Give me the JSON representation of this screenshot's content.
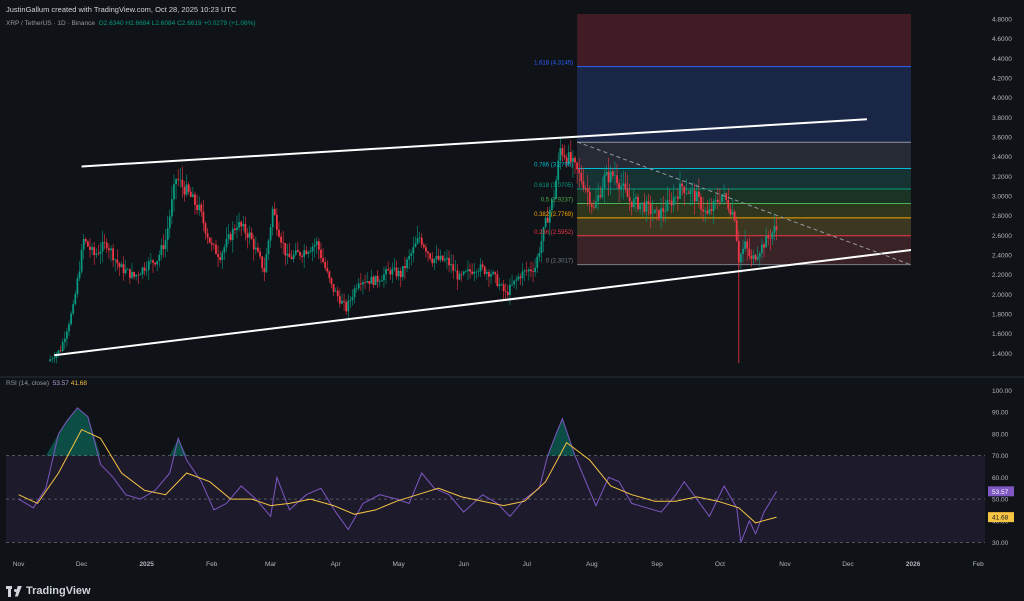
{
  "header": {
    "created_by": "JustinGallum created with TradingView.com, Oct 28, 2025 10:23 UTC",
    "symbol": "XRP / TetherUS · 1D · Binance",
    "ohlc": {
      "open": "O2.6340",
      "high": "H2.6684",
      "low": "L2.6084",
      "close": "C2.6619",
      "change": "+0.0279 (+1.06%)"
    }
  },
  "rsi_panel": {
    "label": "RSI (14, close)",
    "rsi_value": "53.57",
    "ma_value": "41.68"
  },
  "footer": {
    "brand": "TradingView"
  },
  "colors": {
    "background": "#0f1216",
    "up": "#089981",
    "down": "#f23645",
    "channel": "#ffffff",
    "rsi": "#7e57c2",
    "rsi_ma": "#f6c343"
  },
  "chart_data": [
    {
      "type": "candlestick",
      "title": "XRP / TetherUS · 1D · Binance",
      "x": [
        "Nov",
        "Dec",
        "2025",
        "Feb",
        "Mar",
        "Apr",
        "May",
        "Jun",
        "Jul",
        "Aug",
        "Sep",
        "Oct",
        "Nov",
        "Dec",
        "2026",
        "Feb"
      ],
      "y_ticks": [
        "4.8000",
        "4.6000",
        "4.4000",
        "4.2000",
        "4.0000",
        "3.8000",
        "3.6000",
        "3.4000",
        "3.2000",
        "3.0000",
        "2.8000",
        "2.6000",
        "2.4000",
        "2.2000",
        "2.0000",
        "1.8000",
        "1.6000",
        "1.4000"
      ],
      "ylim": [
        1.2,
        4.85
      ],
      "price_path": [
        [
          "2024-11-16",
          1.32
        ],
        [
          "2024-11-22",
          1.44
        ],
        [
          "2024-11-28",
          1.86
        ],
        [
          "2024-12-03",
          2.55
        ],
        [
          "2024-12-08",
          2.4
        ],
        [
          "2024-12-14",
          2.52
        ],
        [
          "2024-12-20",
          2.28
        ],
        [
          "2024-12-27",
          2.18
        ],
        [
          "2025-01-02",
          2.3
        ],
        [
          "2025-01-07",
          2.36
        ],
        [
          "2025-01-11",
          2.55
        ],
        [
          "2025-01-16",
          3.18
        ],
        [
          "2025-01-21",
          3.05
        ],
        [
          "2025-01-27",
          2.86
        ],
        [
          "2025-02-02",
          2.48
        ],
        [
          "2025-02-06",
          2.4
        ],
        [
          "2025-02-14",
          2.72
        ],
        [
          "2025-02-20",
          2.6
        ],
        [
          "2025-02-27",
          2.24
        ],
        [
          "2025-03-03",
          2.86
        ],
        [
          "2025-03-10",
          2.36
        ],
        [
          "2025-03-17",
          2.43
        ],
        [
          "2025-03-24",
          2.52
        ],
        [
          "2025-03-31",
          2.08
        ],
        [
          "2025-04-07",
          1.85
        ],
        [
          "2025-04-13",
          2.15
        ],
        [
          "2025-04-21",
          2.14
        ],
        [
          "2025-04-28",
          2.24
        ],
        [
          "2025-05-03",
          2.2
        ],
        [
          "2025-05-12",
          2.58
        ],
        [
          "2025-05-18",
          2.36
        ],
        [
          "2025-05-25",
          2.34
        ],
        [
          "2025-05-31",
          2.16
        ],
        [
          "2025-06-08",
          2.28
        ],
        [
          "2025-06-15",
          2.22
        ],
        [
          "2025-06-22",
          2.0
        ],
        [
          "2025-06-29",
          2.2
        ],
        [
          "2025-07-06",
          2.28
        ],
        [
          "2025-07-11",
          2.72
        ],
        [
          "2025-07-15",
          3.0
        ],
        [
          "2025-07-18",
          3.48
        ],
        [
          "2025-07-23",
          3.35
        ],
        [
          "2025-07-30",
          3.1
        ],
        [
          "2025-08-03",
          2.86
        ],
        [
          "2025-08-08",
          3.18
        ],
        [
          "2025-08-13",
          3.22
        ],
        [
          "2025-08-20",
          2.95
        ],
        [
          "2025-08-27",
          2.9
        ],
        [
          "2025-09-02",
          2.8
        ],
        [
          "2025-09-08",
          2.92
        ],
        [
          "2025-09-14",
          3.1
        ],
        [
          "2025-09-21",
          2.98
        ],
        [
          "2025-09-26",
          2.8
        ],
        [
          "2025-10-03",
          3.02
        ],
        [
          "2025-10-09",
          2.8
        ],
        [
          "2025-10-11",
          2.36
        ],
        [
          "2025-10-14",
          2.5
        ],
        [
          "2025-10-17",
          2.34
        ],
        [
          "2025-10-21",
          2.46
        ],
        [
          "2025-10-28",
          2.66
        ]
      ],
      "annotations": {
        "channel_upper": [
          [
            "2024-12-01",
            3.3
          ],
          [
            "2025-12-10",
            3.78
          ]
        ],
        "channel_lower": [
          [
            "2024-11-18",
            1.38
          ],
          [
            "2025-12-31",
            2.45
          ]
        ],
        "descending_trendline": [
          [
            "2025-07-25",
            3.55
          ],
          [
            "2025-12-31",
            2.3
          ]
        ],
        "wick_low": [
          "2025-10-10",
          1.3
        ],
        "fib_levels": [
          {
            "ratio": "0",
            "price": 2.3017,
            "label": "0 (2.3017)"
          },
          {
            "ratio": "0.236",
            "price": 2.5952,
            "label": "0.236 (2.5952)"
          },
          {
            "ratio": "0.382",
            "price": 2.7769,
            "label": "0.382 (2.7769)"
          },
          {
            "ratio": "0.5",
            "price": 2.9237,
            "label": "0.5 (2.9237)"
          },
          {
            "ratio": "0.618",
            "price": 3.0705,
            "label": "0.618 (3.0705)"
          },
          {
            "ratio": "0.786",
            "price": 3.2795,
            "label": "0.786 (3.2795)"
          },
          {
            "ratio": "1",
            "price": 3.5456,
            "label": ""
          },
          {
            "ratio": "1.618",
            "price": 4.3145,
            "label": "1.618 (4.3145)"
          }
        ]
      }
    },
    {
      "type": "line",
      "title": "RSI (14, close)",
      "y_ticks": [
        "100.00",
        "90.00",
        "80.00",
        "70.00",
        "60.00",
        "50.00",
        "40.00",
        "30.00"
      ],
      "ylim": [
        27,
        103
      ],
      "reference_lines": [
        70,
        50,
        30
      ],
      "series": [
        {
          "name": "RSI",
          "points": [
            [
              "2024-11-01",
              50
            ],
            [
              "2024-11-08",
              46
            ],
            [
              "2024-11-14",
              55
            ],
            [
              "2024-11-20",
              80
            ],
            [
              "2024-11-24",
              86
            ],
            [
              "2024-11-29",
              92
            ],
            [
              "2024-12-04",
              88
            ],
            [
              "2024-12-10",
              66
            ],
            [
              "2024-12-16",
              60
            ],
            [
              "2024-12-22",
              52
            ],
            [
              "2024-12-29",
              50
            ],
            [
              "2025-01-05",
              54
            ],
            [
              "2025-01-12",
              62
            ],
            [
              "2025-01-16",
              78
            ],
            [
              "2025-01-20",
              68
            ],
            [
              "2025-01-27",
              58
            ],
            [
              "2025-02-02",
              45
            ],
            [
              "2025-02-08",
              48
            ],
            [
              "2025-02-15",
              56
            ],
            [
              "2025-02-22",
              50
            ],
            [
              "2025-03-01",
              42
            ],
            [
              "2025-03-04",
              60
            ],
            [
              "2025-03-10",
              45
            ],
            [
              "2025-03-18",
              52
            ],
            [
              "2025-03-25",
              55
            ],
            [
              "2025-04-01",
              44
            ],
            [
              "2025-04-07",
              36
            ],
            [
              "2025-04-14",
              48
            ],
            [
              "2025-04-22",
              52
            ],
            [
              "2025-04-30",
              50
            ],
            [
              "2025-05-06",
              48
            ],
            [
              "2025-05-12",
              62
            ],
            [
              "2025-05-18",
              55
            ],
            [
              "2025-05-25",
              52
            ],
            [
              "2025-06-01",
              44
            ],
            [
              "2025-06-10",
              52
            ],
            [
              "2025-06-17",
              48
            ],
            [
              "2025-06-23",
              42
            ],
            [
              "2025-06-30",
              50
            ],
            [
              "2025-07-07",
              55
            ],
            [
              "2025-07-11",
              70
            ],
            [
              "2025-07-15",
              80
            ],
            [
              "2025-07-18",
              87
            ],
            [
              "2025-07-24",
              70
            ],
            [
              "2025-07-30",
              56
            ],
            [
              "2025-08-03",
              47
            ],
            [
              "2025-08-09",
              60
            ],
            [
              "2025-08-14",
              58
            ],
            [
              "2025-08-20",
              48
            ],
            [
              "2025-08-27",
              46
            ],
            [
              "2025-09-03",
              44
            ],
            [
              "2025-09-10",
              52
            ],
            [
              "2025-09-14",
              58
            ],
            [
              "2025-09-20",
              50
            ],
            [
              "2025-09-26",
              42
            ],
            [
              "2025-10-03",
              56
            ],
            [
              "2025-10-09",
              46
            ],
            [
              "2025-10-11",
              30
            ],
            [
              "2025-10-15",
              40
            ],
            [
              "2025-10-18",
              34
            ],
            [
              "2025-10-22",
              44
            ],
            [
              "2025-10-28",
              53.57
            ]
          ]
        },
        {
          "name": "RSI-based MA",
          "points": [
            [
              "2024-11-01",
              52
            ],
            [
              "2024-11-10",
              48
            ],
            [
              "2024-11-20",
              62
            ],
            [
              "2024-12-01",
              82
            ],
            [
              "2024-12-10",
              78
            ],
            [
              "2024-12-20",
              62
            ],
            [
              "2024-12-31",
              54
            ],
            [
              "2025-01-10",
              52
            ],
            [
              "2025-01-20",
              62
            ],
            [
              "2025-01-31",
              58
            ],
            [
              "2025-02-10",
              50
            ],
            [
              "2025-02-20",
              50
            ],
            [
              "2025-03-01",
              47
            ],
            [
              "2025-03-10",
              48
            ],
            [
              "2025-03-20",
              50
            ],
            [
              "2025-03-31",
              47
            ],
            [
              "2025-04-10",
              43
            ],
            [
              "2025-04-20",
              45
            ],
            [
              "2025-04-30",
              49
            ],
            [
              "2025-05-10",
              52
            ],
            [
              "2025-05-20",
              55
            ],
            [
              "2025-05-31",
              51
            ],
            [
              "2025-06-10",
              49
            ],
            [
              "2025-06-20",
              47
            ],
            [
              "2025-06-30",
              49
            ],
            [
              "2025-07-10",
              58
            ],
            [
              "2025-07-20",
              76
            ],
            [
              "2025-07-31",
              68
            ],
            [
              "2025-08-10",
              56
            ],
            [
              "2025-08-20",
              52
            ],
            [
              "2025-08-31",
              49
            ],
            [
              "2025-09-10",
              49
            ],
            [
              "2025-09-20",
              51
            ],
            [
              "2025-09-30",
              49
            ],
            [
              "2025-10-10",
              46
            ],
            [
              "2025-10-18",
              39
            ],
            [
              "2025-10-28",
              41.68
            ]
          ]
        }
      ]
    }
  ]
}
